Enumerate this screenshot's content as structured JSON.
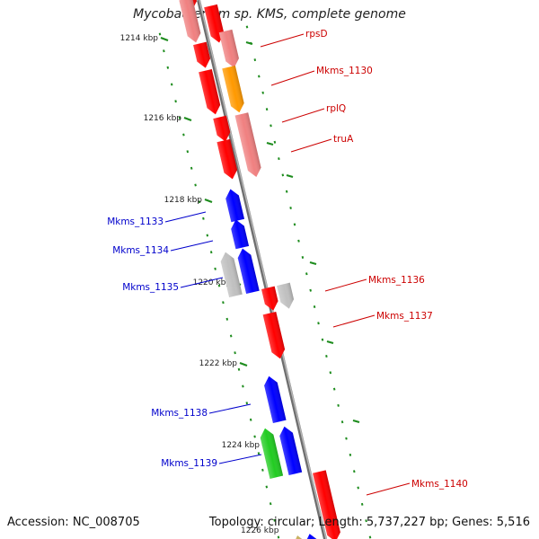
{
  "title": "Mycobacterium sp. KMS, complete genome",
  "footer": {
    "accession": "Accession: NC_008705",
    "summary": "Topology: circular; Length: 5,737,227 bp; Genes: 5,516"
  },
  "colors": {
    "red": "#ff0000",
    "pink": "#f08080",
    "orange": "#ff9900",
    "blue": "#0000ff",
    "grey": "#c0c0c0",
    "green": "#22cc22",
    "tan": "#c8b060",
    "tick": "#1e8c1e",
    "forward_label": "#cc0000",
    "reverse_label": "#0000cc"
  },
  "axis": {
    "kbp_labels": [
      "1214 kbp",
      "1216 kbp",
      "1218 kbp",
      "1220 kbp",
      "1222 kbp",
      "1224 kbp"
    ]
  },
  "genes": [
    {
      "name": "rpsD",
      "strand": "+"
    },
    {
      "name": "Mkms_1130",
      "strand": "+"
    },
    {
      "name": "rplQ",
      "strand": "+"
    },
    {
      "name": "truA",
      "strand": "+"
    },
    {
      "name": "Mkms_1133",
      "strand": "-"
    },
    {
      "name": "Mkms_1134",
      "strand": "-"
    },
    {
      "name": "Mkms_1135",
      "strand": "-"
    },
    {
      "name": "Mkms_1136",
      "strand": "+"
    },
    {
      "name": "Mkms_1137",
      "strand": "+"
    },
    {
      "name": "Mkms_1138",
      "strand": "-"
    },
    {
      "name": "Mkms_1139",
      "strand": "-"
    },
    {
      "name": "Mkms_1140",
      "strand": "+"
    }
  ]
}
